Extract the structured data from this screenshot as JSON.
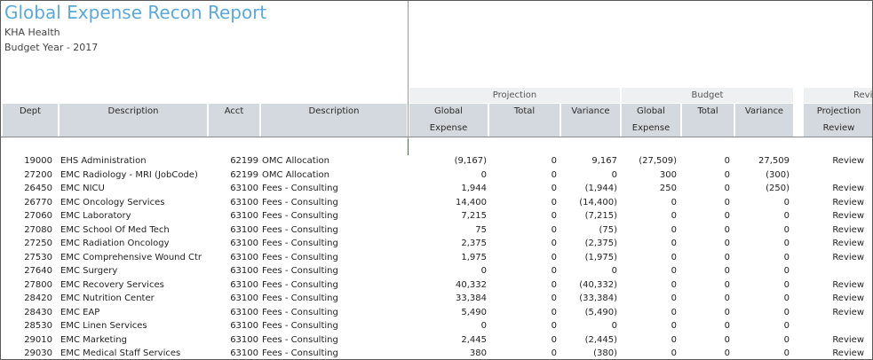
{
  "report": {
    "title": "Global Expense Recon Report",
    "org": "KHA Health",
    "budget_year": "Budget Year - 2017"
  },
  "groups": [
    "Projection",
    "Budget",
    "Revi"
  ],
  "headers": [
    {
      "l1": "Dept",
      "l2": ""
    },
    {
      "l1": "Description",
      "l2": ""
    },
    {
      "l1": "Acct",
      "l2": ""
    },
    {
      "l1": "Description",
      "l2": ""
    },
    {
      "l1": "Global",
      "l2": "Expense"
    },
    {
      "l1": "Total",
      "l2": ""
    },
    {
      "l1": "Variance",
      "l2": ""
    },
    {
      "l1": "Global",
      "l2": "Expense"
    },
    {
      "l1": "Total",
      "l2": ""
    },
    {
      "l1": "Variance",
      "l2": ""
    },
    {
      "l1": "Projection",
      "l2": "Review"
    }
  ],
  "rows": [
    {
      "dept": "19000",
      "desc": "EHS Administration",
      "acct": "62199",
      "desc2": "OMC Allocation",
      "pg": "(9,167)",
      "pt": "0",
      "pv": "9,167",
      "bg": "(27,509)",
      "bt": "0",
      "bv": "27,509",
      "rv": "Review"
    },
    {
      "dept": "27200",
      "desc": "EMC Radiology - MRI (JobCode)",
      "acct": "62199",
      "desc2": "OMC Allocation",
      "pg": "0",
      "pt": "0",
      "pv": "0",
      "bg": "300",
      "bt": "0",
      "bv": "(300)",
      "rv": ""
    },
    {
      "dept": "26450",
      "desc": "EMC NICU",
      "acct": "63100",
      "desc2": "Fees - Consulting",
      "pg": "1,944",
      "pt": "0",
      "pv": "(1,944)",
      "bg": "250",
      "bt": "0",
      "bv": "(250)",
      "rv": "Review"
    },
    {
      "dept": "26770",
      "desc": "EMC Oncology Services",
      "acct": "63100",
      "desc2": "Fees - Consulting",
      "pg": "14,400",
      "pt": "0",
      "pv": "(14,400)",
      "bg": "0",
      "bt": "0",
      "bv": "0",
      "rv": "Review"
    },
    {
      "dept": "27060",
      "desc": "EMC Laboratory",
      "acct": "63100",
      "desc2": "Fees - Consulting",
      "pg": "7,215",
      "pt": "0",
      "pv": "(7,215)",
      "bg": "0",
      "bt": "0",
      "bv": "0",
      "rv": "Review"
    },
    {
      "dept": "27080",
      "desc": "EMC School Of Med Tech",
      "acct": "63100",
      "desc2": "Fees - Consulting",
      "pg": "75",
      "pt": "0",
      "pv": "(75)",
      "bg": "0",
      "bt": "0",
      "bv": "0",
      "rv": "Review"
    },
    {
      "dept": "27250",
      "desc": "EMC Radiation Oncology",
      "acct": "63100",
      "desc2": "Fees - Consulting",
      "pg": "2,375",
      "pt": "0",
      "pv": "(2,375)",
      "bg": "0",
      "bt": "0",
      "bv": "0",
      "rv": "Review"
    },
    {
      "dept": "27530",
      "desc": "EMC Comprehensive Wound Ctr",
      "acct": "63100",
      "desc2": "Fees - Consulting",
      "pg": "1,975",
      "pt": "0",
      "pv": "(1,975)",
      "bg": "0",
      "bt": "0",
      "bv": "0",
      "rv": "Review"
    },
    {
      "dept": "27640",
      "desc": "EMC Surgery",
      "acct": "63100",
      "desc2": "Fees - Consulting",
      "pg": "0",
      "pt": "0",
      "pv": "0",
      "bg": "0",
      "bt": "0",
      "bv": "0",
      "rv": ""
    },
    {
      "dept": "27800",
      "desc": "EMC Recovery Services",
      "acct": "63100",
      "desc2": "Fees - Consulting",
      "pg": "40,332",
      "pt": "0",
      "pv": "(40,332)",
      "bg": "0",
      "bt": "0",
      "bv": "0",
      "rv": "Review"
    },
    {
      "dept": "28420",
      "desc": "EMC Nutrition Center",
      "acct": "63100",
      "desc2": "Fees - Consulting",
      "pg": "33,384",
      "pt": "0",
      "pv": "(33,384)",
      "bg": "0",
      "bt": "0",
      "bv": "0",
      "rv": "Review"
    },
    {
      "dept": "28430",
      "desc": "EMC EAP",
      "acct": "63100",
      "desc2": "Fees - Consulting",
      "pg": "5,490",
      "pt": "0",
      "pv": "(5,490)",
      "bg": "0",
      "bt": "0",
      "bv": "0",
      "rv": "Review"
    },
    {
      "dept": "28530",
      "desc": "EMC Linen Services",
      "acct": "63100",
      "desc2": "Fees - Consulting",
      "pg": "0",
      "pt": "0",
      "pv": "0",
      "bg": "0",
      "bt": "0",
      "bv": "0",
      "rv": ""
    },
    {
      "dept": "29010",
      "desc": "EMC Marketing",
      "acct": "63100",
      "desc2": "Fees - Consulting",
      "pg": "2,445",
      "pt": "0",
      "pv": "(2,445)",
      "bg": "0",
      "bt": "0",
      "bv": "0",
      "rv": "Review"
    },
    {
      "dept": "29030",
      "desc": "EMC Medical Staff Services",
      "acct": "63100",
      "desc2": "Fees - Consulting",
      "pg": "380",
      "pt": "0",
      "pv": "(380)",
      "bg": "0",
      "bt": "0",
      "bv": "0",
      "rv": "Review"
    }
  ]
}
